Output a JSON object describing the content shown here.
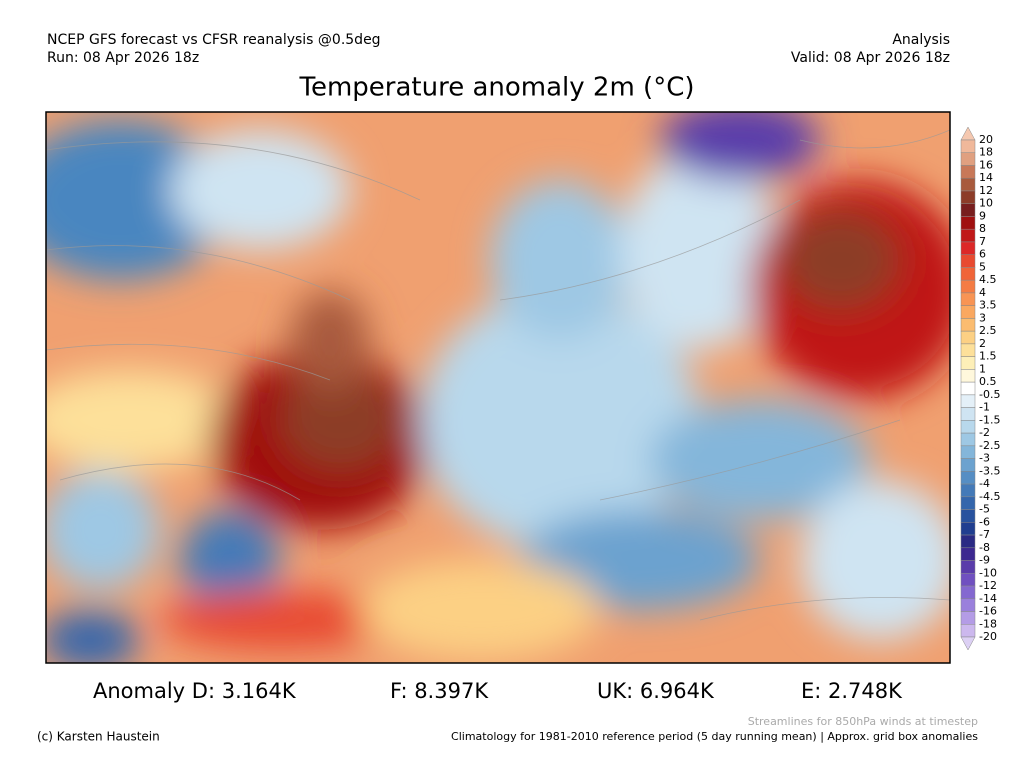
{
  "header": {
    "source": "NCEP GFS forecast vs CFSR reanalysis @0.5deg",
    "run": "Run: 08 Apr 2026 18z",
    "mode": "Analysis",
    "valid": "Valid: 08 Apr 2026 18z"
  },
  "title": "Temperature anomaly 2m (°C)",
  "colorbar": {
    "ticks": [
      20,
      18,
      16,
      14,
      12,
      10,
      9,
      8,
      7,
      6,
      5,
      4.5,
      4,
      3.5,
      3,
      2.5,
      2,
      1.5,
      1,
      0.5,
      -0.5,
      -1,
      -1.5,
      -2,
      -2.5,
      -3,
      -3.5,
      -4,
      -4.5,
      -5,
      -6,
      -7,
      -8,
      -9,
      -10,
      -12,
      -14,
      -16,
      -18,
      -20
    ],
    "colors": [
      "#f5c8b0",
      "#f0b89a",
      "#e0a080",
      "#c87858",
      "#a85a3c",
      "#8c3c28",
      "#781e1e",
      "#a01010",
      "#c01818",
      "#dc2828",
      "#e84a30",
      "#f06438",
      "#f47c44",
      "#f89454",
      "#faa860",
      "#fbbc70",
      "#fcd084",
      "#fde09a",
      "#fdefb8",
      "#fff8dc",
      "#ffffff",
      "#e4f0f8",
      "#cfe4f2",
      "#b8d8ec",
      "#9ec8e4",
      "#84b6da",
      "#6ca2cf",
      "#568ec4",
      "#447ab8",
      "#3466ac",
      "#28529e",
      "#203e90",
      "#2a2a84",
      "#3c2890",
      "#5a3caa",
      "#7050c0",
      "#8468d0",
      "#9a80dc",
      "#b49ce6",
      "#ccb8ee",
      "#dcd0f4"
    ]
  },
  "anomalies": [
    "Anomaly D: 3.164K",
    "F: 8.397K",
    "UK: 6.964K",
    "E: 2.748K"
  ],
  "footer": {
    "streamlines": "Streamlines for 850hPa winds at timestep",
    "credit": "(c) Karsten Haustein",
    "climatology": "Climatology for 1981-2010 reference period (5 day running mean) | Approx. grid box anomalies"
  }
}
